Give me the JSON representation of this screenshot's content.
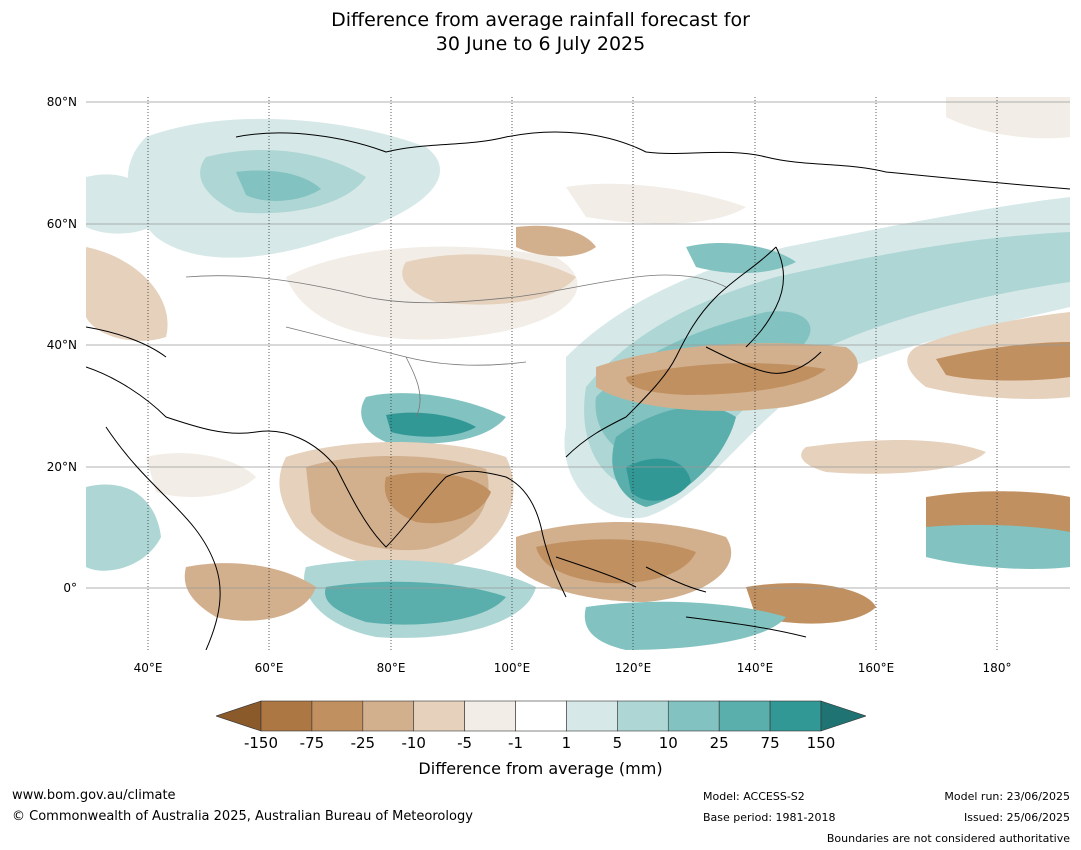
{
  "title": {
    "line1": "Difference from average rainfall forecast for",
    "line2": "30 June to 6 July 2025"
  },
  "map": {
    "lat_labels": [
      "80°N",
      "60°N",
      "40°N",
      "20°N",
      "0°"
    ],
    "lon_labels": [
      "40°E",
      "60°E",
      "80°E",
      "100°E",
      "120°E",
      "140°E",
      "160°E",
      "180°"
    ]
  },
  "colorbar": {
    "ticks": [
      "-150",
      "-75",
      "-25",
      "-10",
      "-5",
      "-1",
      "1",
      "5",
      "10",
      "25",
      "75",
      "150"
    ],
    "colors": [
      "#8b5a2b",
      "#ad7743",
      "#c09061",
      "#d2b08d",
      "#e5d1bc",
      "#f2ede6",
      "#ffffff",
      "#d6e9e8",
      "#add6d5",
      "#82c2c0",
      "#5aaeac",
      "#319896",
      "#1f7473"
    ],
    "label": "Difference from average (mm)"
  },
  "footer": {
    "website": "www.bom.gov.au/climate",
    "copyright": "© Commonwealth of Australia 2025, Australian Bureau of Meteorology",
    "model": "Model: ACCESS-S2",
    "base_period": "Base period: 1981-2018",
    "model_run": "Model run: 23/06/2025",
    "issued": "Issued: 25/06/2025",
    "disclaimer": "Boundaries are not considered authoritative"
  }
}
